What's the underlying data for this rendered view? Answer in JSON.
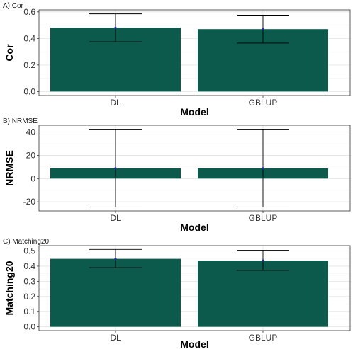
{
  "colors": {
    "bar_fill": "#0c5a4c",
    "point": "#2a2aa8"
  },
  "chart_data": [
    {
      "type": "bar",
      "title": "A) Cor",
      "xlabel": "Model",
      "ylabel": "Cor",
      "categories": [
        "DL",
        "GBLUP"
      ],
      "values": [
        0.48,
        0.47
      ],
      "error_lower": [
        0.375,
        0.365
      ],
      "error_upper": [
        0.585,
        0.575
      ],
      "ylim": [
        -0.03,
        0.615
      ],
      "yticks": [
        0.0,
        0.2,
        0.4,
        0.6
      ],
      "ytick_labels": [
        "0.0",
        "0.2",
        "0.4",
        "0.6"
      ],
      "grid": true
    },
    {
      "type": "bar",
      "title": "B) NRMSE",
      "xlabel": "Model",
      "ylabel": "NRMSE",
      "categories": [
        "DL",
        "GBLUP"
      ],
      "values": [
        8.8,
        8.8
      ],
      "error_lower": [
        -24.5,
        -24.5
      ],
      "error_upper": [
        42.5,
        42.5
      ],
      "ylim": [
        -27.8,
        45.8
      ],
      "yticks": [
        -20,
        0,
        20,
        40
      ],
      "ytick_labels": [
        "-20",
        "0",
        "20",
        "40"
      ],
      "grid": true
    },
    {
      "type": "bar",
      "title": "C) Matching20",
      "xlabel": "Model",
      "ylabel": "Matching20",
      "categories": [
        "DL",
        "GBLUP"
      ],
      "values": [
        0.448,
        0.437
      ],
      "error_lower": [
        0.39,
        0.372
      ],
      "error_upper": [
        0.51,
        0.505
      ],
      "ylim": [
        -0.025,
        0.535
      ],
      "yticks": [
        0.0,
        0.1,
        0.2,
        0.3,
        0.4,
        0.5
      ],
      "ytick_labels": [
        "0.0",
        "0.1",
        "0.2",
        "0.3",
        "0.4",
        "0.5"
      ],
      "grid": true
    }
  ]
}
